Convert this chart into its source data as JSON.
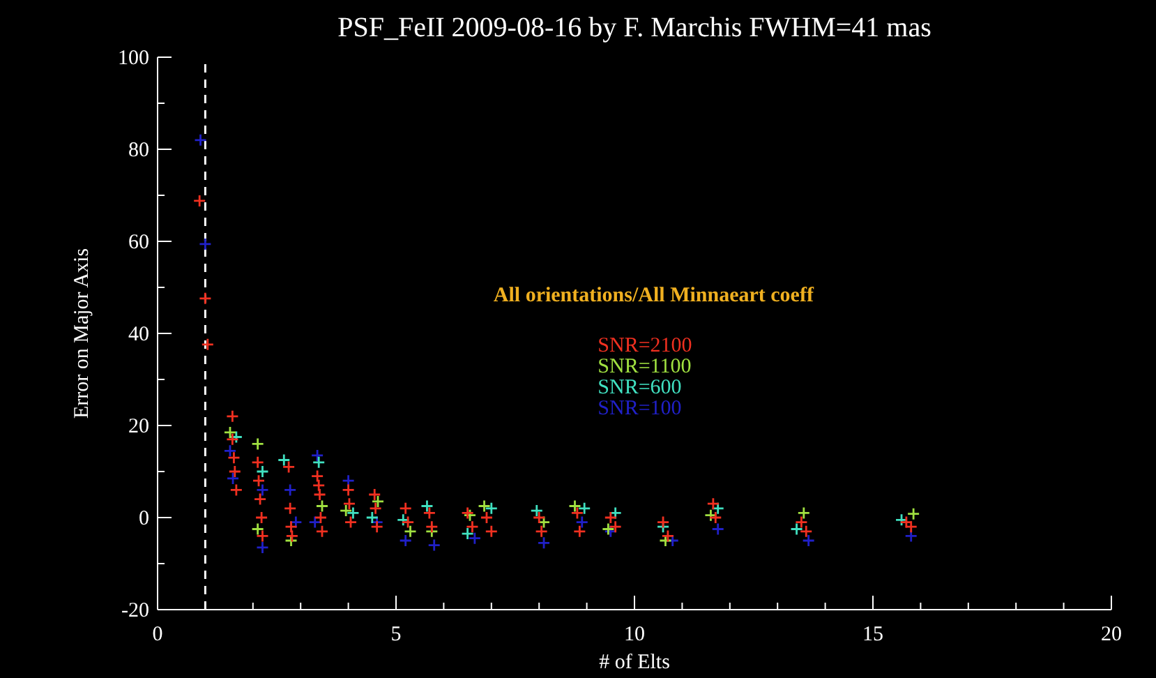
{
  "chart_data": {
    "type": "scatter",
    "title": "PSF_FeII 2009-08-16 by F. Marchis FWHM=41 mas",
    "xlabel": "# of Elts",
    "ylabel": "Error on Major Axis",
    "annotations": [
      "All orientations/All Minnaeart coeff"
    ],
    "xlim": [
      0,
      20
    ],
    "ylim": [
      -20,
      100
    ],
    "xticks": [
      0,
      {
        "value": 1,
        "label": null
      },
      {
        "value": 2,
        "label": null
      },
      {
        "value": 3,
        "label": null
      },
      {
        "value": 4,
        "label": null
      },
      5,
      {
        "value": 6,
        "label": null
      },
      {
        "value": 7,
        "label": null
      },
      {
        "value": 8,
        "label": null
      },
      {
        "value": 9,
        "label": null
      },
      10,
      {
        "value": 11,
        "label": null
      },
      {
        "value": 12,
        "label": null
      },
      {
        "value": 13,
        "label": null
      },
      {
        "value": 14,
        "label": null
      },
      15,
      {
        "value": 16,
        "label": null
      },
      {
        "value": 17,
        "label": null
      },
      {
        "value": 18,
        "label": null
      },
      {
        "value": 19,
        "label": null
      },
      20
    ],
    "yticks": [
      -20,
      {
        "value": -10,
        "label": null
      },
      0,
      {
        "value": 10,
        "label": null
      },
      20,
      {
        "value": 30,
        "label": null
      },
      40,
      {
        "value": 50,
        "label": null
      },
      60,
      {
        "value": 70,
        "label": null
      },
      80,
      {
        "value": 90,
        "label": null
      },
      100
    ],
    "marker": "cross",
    "legend": "right",
    "grid": false,
    "ref_lines": [
      {
        "axis": "x",
        "value": 1,
        "color": "#ffffff",
        "line_style": "dashed"
      }
    ],
    "series": [
      {
        "name": "SNR=2100",
        "color": "#f03020",
        "x": [
          0.88,
          1.0,
          1.05,
          1.57,
          1.57,
          1.6,
          1.62,
          1.65,
          2.1,
          2.12,
          2.15,
          2.18,
          2.2,
          2.75,
          2.78,
          2.8,
          2.82,
          3.35,
          3.38,
          3.4,
          3.42,
          3.45,
          4.0,
          4.02,
          4.05,
          4.55,
          4.57,
          4.6,
          5.2,
          5.25,
          5.7,
          5.75,
          6.5,
          6.6,
          6.9,
          7.0,
          8.0,
          8.05,
          8.8,
          8.85,
          9.5,
          9.6,
          10.6,
          10.7,
          11.65,
          11.7,
          13.5,
          13.6,
          15.7,
          15.8
        ],
        "values": [
          68.8,
          47.6,
          37.6,
          22,
          17,
          13,
          10,
          6,
          12,
          8,
          4,
          0,
          -4,
          11,
          2,
          -2,
          -4,
          9,
          7,
          5,
          0,
          -3,
          6,
          3,
          -1,
          5,
          2,
          -2,
          2,
          -1,
          1,
          -2,
          1,
          -2,
          0,
          -3,
          0,
          -3,
          1,
          -3,
          0,
          -2,
          -1,
          -4,
          3,
          0,
          -1,
          -3,
          -1,
          -2
        ]
      },
      {
        "name": "SNR=1100",
        "color": "#a0e040",
        "x": [
          1.52,
          2.1,
          2.1,
          2.8,
          3.45,
          3.95,
          4.62,
          5.3,
          5.75,
          6.55,
          6.85,
          8.1,
          8.75,
          9.45,
          10.65,
          11.6,
          13.55,
          15.85
        ],
        "values": [
          18.5,
          16,
          -2.5,
          -5,
          2.5,
          1.5,
          3.5,
          -3,
          -3,
          0.5,
          2.5,
          -1,
          2.5,
          -2.5,
          -5,
          0.5,
          1,
          0.8
        ]
      },
      {
        "name": "SNR=600",
        "color": "#40e0c0",
        "x": [
          1.65,
          2.2,
          2.65,
          3.38,
          4.1,
          4.5,
          5.15,
          5.65,
          6.5,
          7.0,
          7.95,
          8.95,
          9.6,
          10.6,
          11.75,
          13.4,
          15.6
        ],
        "values": [
          17.5,
          10,
          12.5,
          12,
          1,
          0,
          -0.5,
          2.5,
          -3.5,
          2,
          1.5,
          2,
          1,
          -2,
          2,
          -2.5,
          -0.5
        ]
      },
      {
        "name": "SNR=100",
        "color": "#2020c8",
        "x": [
          0.9,
          1.0,
          1.52,
          1.58,
          2.2,
          2.2,
          2.78,
          2.9,
          3.35,
          3.3,
          4.0,
          4.6,
          5.2,
          5.8,
          6.65,
          8.1,
          8.9,
          9.5,
          10.8,
          11.75,
          13.65,
          15.8
        ],
        "values": [
          82,
          59.4,
          14.5,
          8.5,
          6,
          -6.5,
          6,
          -1,
          13.5,
          -1,
          8,
          -1,
          -5,
          -6,
          -4.5,
          -5.5,
          -1,
          -3,
          -5,
          -2.5,
          -5,
          -4
        ]
      }
    ]
  }
}
